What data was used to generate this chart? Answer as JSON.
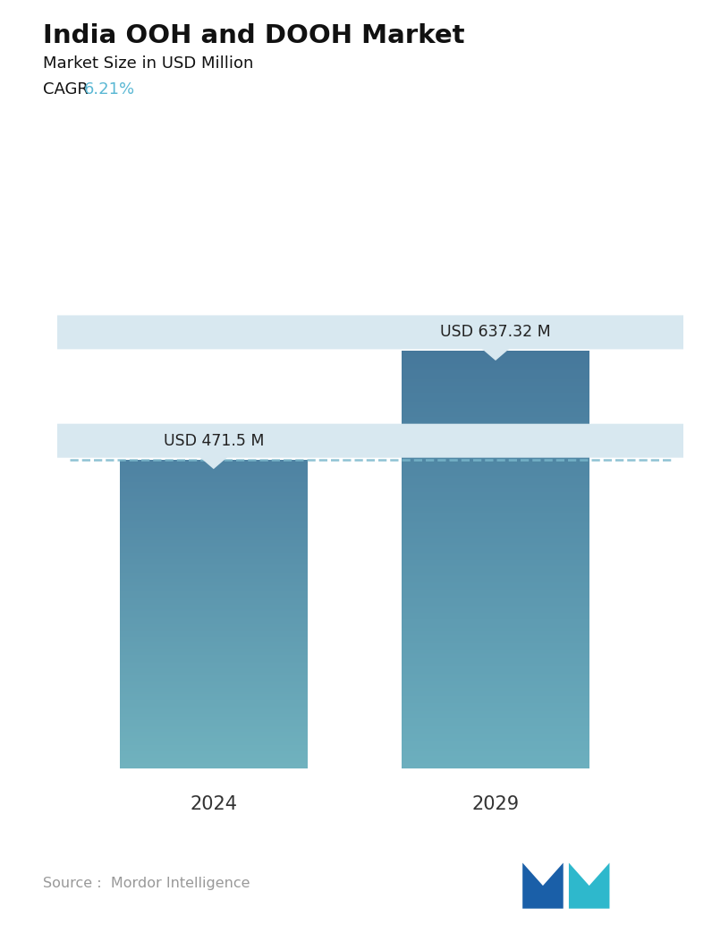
{
  "title": "India OOH and DOOH Market",
  "subtitle": "Market Size in USD Million",
  "cagr_label": "CAGR ",
  "cagr_value": "6.21%",
  "cagr_color": "#5bb8d4",
  "categories": [
    "2024",
    "2029"
  ],
  "values": [
    471.5,
    637.32
  ],
  "bar_labels": [
    "USD 471.5 M",
    "USD 637.32 M"
  ],
  "dashed_line_color": "#7ab8cc",
  "source_text": "Source :  Mordor Intelligence",
  "source_color": "#999999",
  "background_color": "#ffffff",
  "annotation_bg_color": "#d8e8f0",
  "annotation_text_color": "#222222"
}
